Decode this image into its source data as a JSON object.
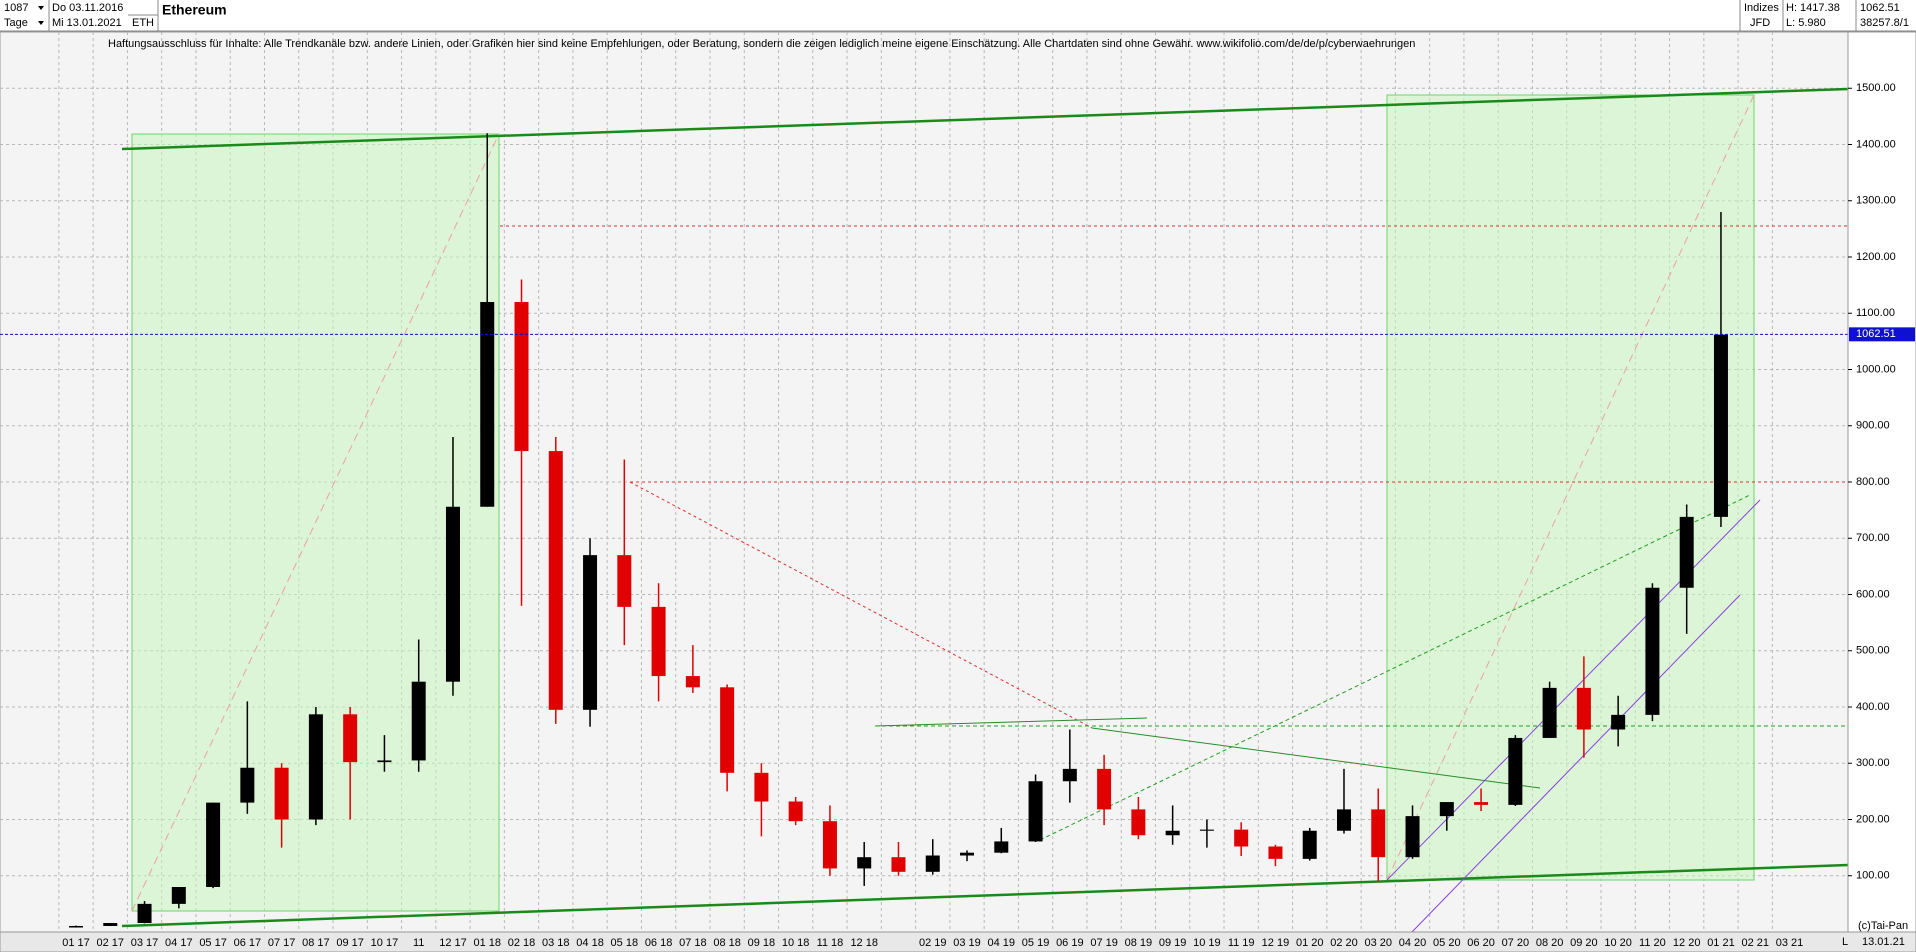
{
  "chart_data": {
    "type": "candlestick",
    "title": "Ethereum",
    "info": {
      "count": "1087",
      "from": "Do 03.11.2016",
      "period": "Tage",
      "to": "Mi 13.01.2021",
      "symbol": "ETH",
      "group": "Indizes",
      "broker": "JFD",
      "high": "H: 1417.38",
      "low": "L: 5.980",
      "volume": "38257.8/1"
    },
    "disclaimer": "Haftungsausschluss für Inhalte: Alle Trendkanäle bzw. andere Linien, oder Grafiken hier sind keine Empfehlungen, oder Beratung, sondern die zeigen lediglich meine eigene Einschätzung. Alle Chartdaten sind ohne Gewähr.  www.wikifolio.com/de/de/p/cyberwaehrungen",
    "footer": {
      "copyright": "(c)Tai-Pan",
      "date": "13.01.21",
      "scale": "L"
    },
    "last_price": 1062.51,
    "categories": [
      "01 17",
      "02 17",
      "03 17",
      "04 17",
      "05 17",
      "06 17",
      "07 17",
      "08 17",
      "09 17",
      "10 17",
      "11",
      "12 17",
      "01 18",
      "02 18",
      "03 18",
      "04 18",
      "05 18",
      "06 18",
      "07 18",
      "08 18",
      "09 18",
      "10 18",
      "11 18",
      "12 18",
      null,
      "02 19",
      "03 19",
      "04 19",
      "05 19",
      "06 19",
      "07 19",
      "08 19",
      "09 19",
      "10 19",
      "11 19",
      "12 19",
      "01 20",
      "02 20",
      "03 20",
      "04 20",
      "05 20",
      "06 20",
      "07 20",
      "08 20",
      "09 20",
      "10 20",
      "11 20",
      "12 20",
      "01 21",
      "02 21",
      "03 21"
    ],
    "open": [
      8,
      10.7,
      16,
      50,
      80,
      230,
      292,
      200,
      387,
      302,
      305,
      445,
      756,
      1120,
      855,
      395,
      670,
      578,
      455,
      435,
      283,
      232,
      197,
      113,
      133,
      107,
      136,
      141,
      161,
      268,
      290,
      218,
      172,
      180,
      182,
      152,
      130,
      180,
      218,
      133,
      206,
      231,
      226,
      345,
      434,
      360,
      386,
      612,
      738,
      null,
      null
    ],
    "high": [
      11.5,
      16,
      55,
      80,
      230,
      410,
      300,
      400,
      400,
      350,
      520,
      880,
      1420,
      1160,
      880,
      700,
      840,
      620,
      510,
      440,
      300,
      240,
      225,
      160,
      160,
      165,
      145,
      185,
      280,
      360,
      315,
      240,
      225,
      200,
      195,
      155,
      185,
      290,
      255,
      225,
      230,
      255,
      350,
      445,
      490,
      420,
      620,
      760,
      1280,
      null,
      null
    ],
    "low": [
      7.9,
      10.5,
      15.5,
      42,
      78,
      210,
      150,
      190,
      200,
      285,
      285,
      420,
      756,
      580,
      370,
      365,
      510,
      410,
      425,
      250,
      170,
      190,
      100,
      82,
      100,
      102,
      126,
      140,
      160,
      230,
      190,
      165,
      155,
      150,
      135,
      117,
      127,
      175,
      90,
      130,
      180,
      215,
      224,
      345,
      310,
      330,
      375,
      530,
      720,
      null,
      null
    ],
    "close": [
      10.7,
      16,
      50,
      80,
      230,
      292,
      200,
      387,
      302,
      305,
      445,
      756,
      1120,
      855,
      395,
      670,
      578,
      455,
      435,
      283,
      232,
      197,
      113,
      133,
      107,
      136,
      141,
      161,
      268,
      290,
      218,
      172,
      180,
      182,
      152,
      130,
      180,
      218,
      133,
      206,
      231,
      226,
      345,
      434,
      360,
      386,
      612,
      738,
      1062,
      null,
      null
    ],
    "up_color": "#000000",
    "down_color": "#e00000",
    "price_line_color": "#1010d0",
    "ylim": [
      0,
      1600
    ],
    "yticks": [
      {
        "value": 100,
        "label": "100.00"
      },
      {
        "value": 200,
        "label": "200.00"
      },
      {
        "value": 300,
        "label": "300.00"
      },
      {
        "value": 400,
        "label": "400.00"
      },
      {
        "value": 500,
        "label": "500.00"
      },
      {
        "value": 600,
        "label": "600.00"
      },
      {
        "value": 700,
        "label": "700.00"
      },
      {
        "value": 800,
        "label": "800.00"
      },
      {
        "value": 900,
        "label": "900.00"
      },
      {
        "value": 1000,
        "label": "1000.00"
      },
      {
        "value": 1100,
        "label": "1100.00"
      },
      {
        "value": 1200,
        "label": "1200.00"
      },
      {
        "value": 1300,
        "label": "1300.00"
      },
      {
        "value": 1400,
        "label": "1400.00"
      },
      {
        "value": 1500,
        "label": "1500.00"
      }
    ],
    "grid": true
  }
}
